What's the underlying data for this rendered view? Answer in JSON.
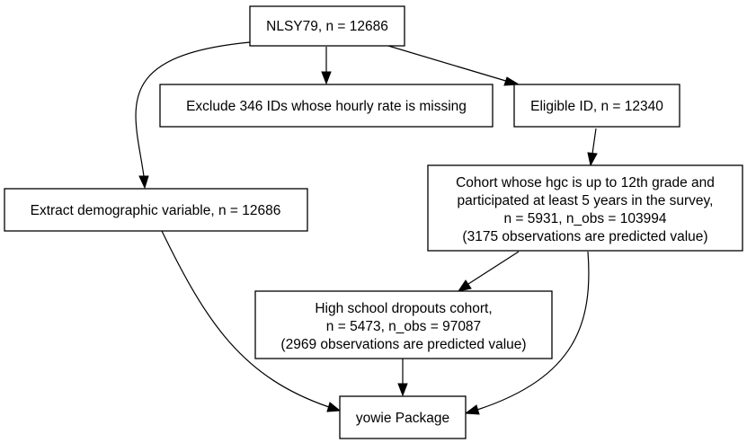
{
  "nodes": {
    "nlsy79": {
      "lines": [
        "NLSY79, n = 12686"
      ]
    },
    "exclude": {
      "lines": [
        "Exclude 346 IDs whose hourly rate is missing"
      ]
    },
    "eligible": {
      "lines": [
        "Eligible ID, n = 12340"
      ]
    },
    "demographic": {
      "lines": [
        "Extract demographic variable, n = 12686"
      ]
    },
    "cohort": {
      "lines": [
        "Cohort whose hgc is up to 12th grade and",
        "participated at least 5 years in the survey,",
        "n = 5931, n_obs = 103994",
        "(3175 observations are predicted value)"
      ]
    },
    "dropouts": {
      "lines": [
        "High school dropouts cohort,",
        "n = 5473, n_obs = 97087",
        "(2969 observations are predicted value)"
      ]
    },
    "yowie": {
      "lines": [
        "yowie Package"
      ]
    }
  },
  "edges": [
    {
      "from": "nlsy79",
      "to": "exclude"
    },
    {
      "from": "nlsy79",
      "to": "eligible"
    },
    {
      "from": "nlsy79",
      "to": "demographic"
    },
    {
      "from": "eligible",
      "to": "cohort"
    },
    {
      "from": "cohort",
      "to": "dropouts"
    },
    {
      "from": "cohort",
      "to": "yowie"
    },
    {
      "from": "dropouts",
      "to": "yowie"
    },
    {
      "from": "demographic",
      "to": "yowie"
    }
  ]
}
